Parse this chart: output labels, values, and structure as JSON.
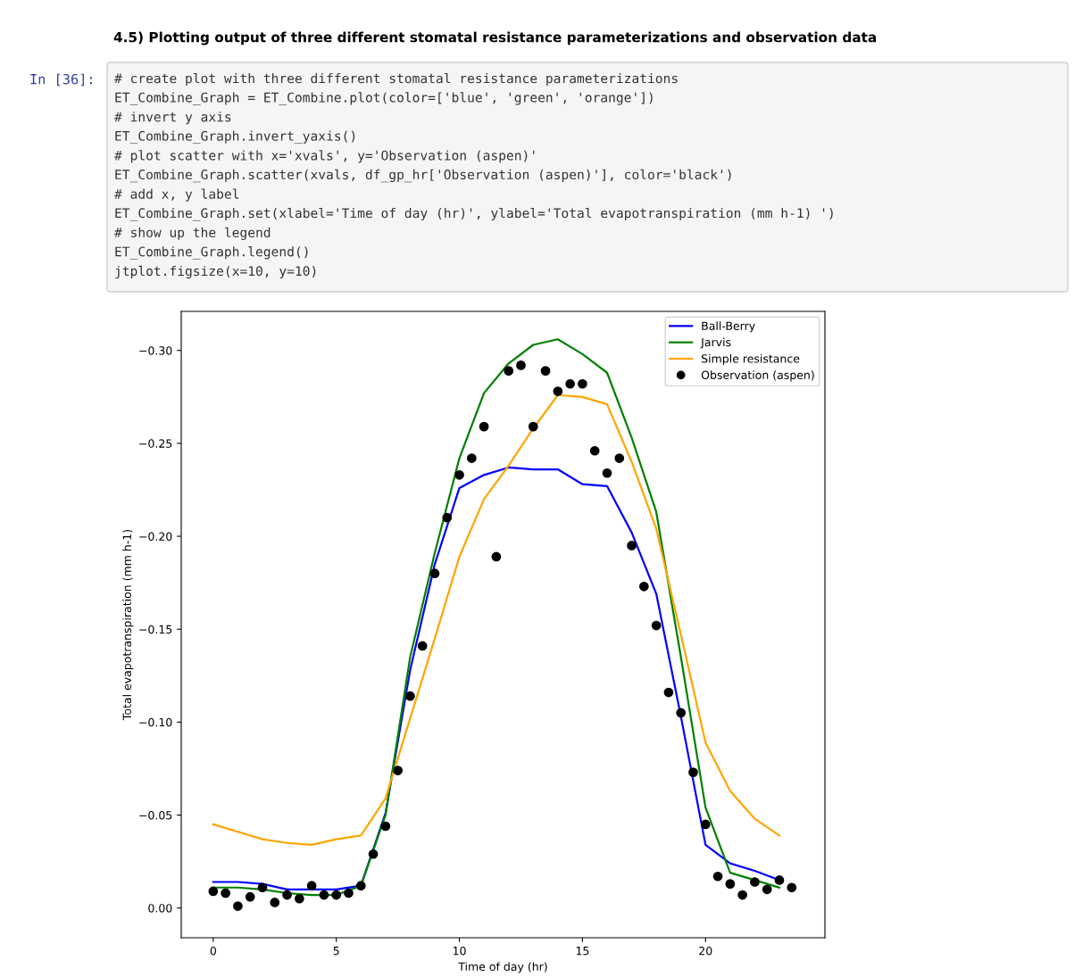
{
  "chart_data": {
    "type": "line",
    "title": "4.5) Plotting output of three different stomatal resistance parameterizations and observation data",
    "annotations": [
      "In [36]:",
      "# create plot with three different stomatal resistance parameterizations",
      "ET_Combine_Graph = ET_Combine.plot(color=['blue', 'green', 'orange'])",
      "# invert y axis",
      "ET_Combine_Graph.invert_yaxis()",
      "# plot scatter with x='xvals', y='Observation (aspen)'",
      "ET_Combine_Graph.scatter(xvals, df_gp_hr['Observation (aspen)'], color='black')",
      "# add x, y label",
      "ET_Combine_Graph.set(xlabel='Time of day (hr)', ylabel='Total evapotranspiration (mm h-1) ')",
      "# show up the legend",
      "ET_Combine_Graph.legend()",
      "jtplot.figsize(x=10, y=10)"
    ],
    "xlabel": "Time of day (hr)",
    "ylabel": "Total evapotranspiration (mm h-1)",
    "x": [
      0,
      1,
      2,
      3,
      4,
      5,
      6,
      7,
      8,
      9,
      10,
      11,
      12,
      13,
      14,
      15,
      16,
      17,
      18,
      19,
      20,
      21,
      22,
      23
    ],
    "series": [
      {
        "name": "Ball-Berry",
        "color": "#0000ff",
        "values": [
          -0.014,
          -0.014,
          -0.013,
          -0.01,
          -0.01,
          -0.01,
          -0.012,
          -0.051,
          -0.128,
          -0.185,
          -0.226,
          -0.233,
          -0.237,
          -0.236,
          -0.236,
          -0.228,
          -0.227,
          -0.202,
          -0.169,
          -0.103,
          -0.034,
          -0.024,
          -0.02,
          -0.015
        ]
      },
      {
        "name": "Jarvis",
        "color": "#008000",
        "values": [
          -0.011,
          -0.011,
          -0.01,
          -0.008,
          -0.007,
          -0.007,
          -0.012,
          -0.05,
          -0.135,
          -0.191,
          -0.242,
          -0.277,
          -0.293,
          -0.303,
          -0.306,
          -0.298,
          -0.288,
          -0.253,
          -0.213,
          -0.135,
          -0.054,
          -0.019,
          -0.015,
          -0.011
        ]
      },
      {
        "name": "Simple resistance",
        "color": "#ffa500",
        "values": [
          -0.045,
          -0.041,
          -0.037,
          -0.035,
          -0.034,
          -0.037,
          -0.039,
          -0.059,
          -0.102,
          -0.145,
          -0.189,
          -0.22,
          -0.238,
          -0.258,
          -0.276,
          -0.275,
          -0.271,
          -0.24,
          -0.204,
          -0.147,
          -0.089,
          -0.063,
          -0.048,
          -0.039
        ]
      },
      {
        "name": "Observation (aspen)",
        "type": "scatter",
        "color": "#000000",
        "marker": "circle",
        "x": [
          0,
          0.5,
          1,
          1.5,
          2,
          2.5,
          3,
          3.5,
          4,
          4.5,
          5,
          5.5,
          6,
          6.5,
          7,
          7.5,
          8,
          8.5,
          9,
          9.5,
          10,
          10.5,
          11,
          11.5,
          12,
          12.5,
          13,
          13.5,
          14,
          14.5,
          15,
          15.5,
          16,
          16.5,
          17,
          17.5,
          18,
          18.5,
          19,
          19.5,
          20,
          20.5,
          21,
          21.5,
          22,
          22.5,
          23,
          23.5
        ],
        "values": [
          -0.009,
          -0.008,
          -0.001,
          -0.006,
          -0.011,
          -0.003,
          -0.007,
          -0.005,
          -0.012,
          -0.007,
          -0.007,
          -0.008,
          -0.012,
          -0.029,
          -0.044,
          -0.074,
          -0.114,
          -0.141,
          -0.18,
          -0.21,
          -0.233,
          -0.242,
          -0.259,
          -0.189,
          -0.289,
          -0.292,
          -0.259,
          -0.289,
          -0.278,
          -0.282,
          -0.282,
          -0.246,
          -0.234,
          -0.242,
          -0.195,
          -0.173,
          -0.152,
          -0.116,
          -0.105,
          -0.073,
          -0.045,
          -0.017,
          -0.013,
          -0.007,
          -0.014,
          -0.01,
          -0.015,
          -0.011
        ]
      }
    ],
    "xlim": [
      -1.3,
      24.85
    ],
    "ylim": [
      0.016,
      -0.321
    ],
    "xticks": [
      0,
      5,
      10,
      15,
      20
    ],
    "yticks": [
      {
        "value": -0.3,
        "label": "−0.30"
      },
      {
        "value": -0.25,
        "label": "−0.25"
      },
      {
        "value": -0.2,
        "label": "−0.20"
      },
      {
        "value": -0.15,
        "label": "−0.15"
      },
      {
        "value": -0.1,
        "label": "−0.10"
      },
      {
        "value": -0.05,
        "label": "−0.05"
      },
      {
        "value": 0,
        "label": "0.00"
      }
    ],
    "legend": "top right"
  }
}
